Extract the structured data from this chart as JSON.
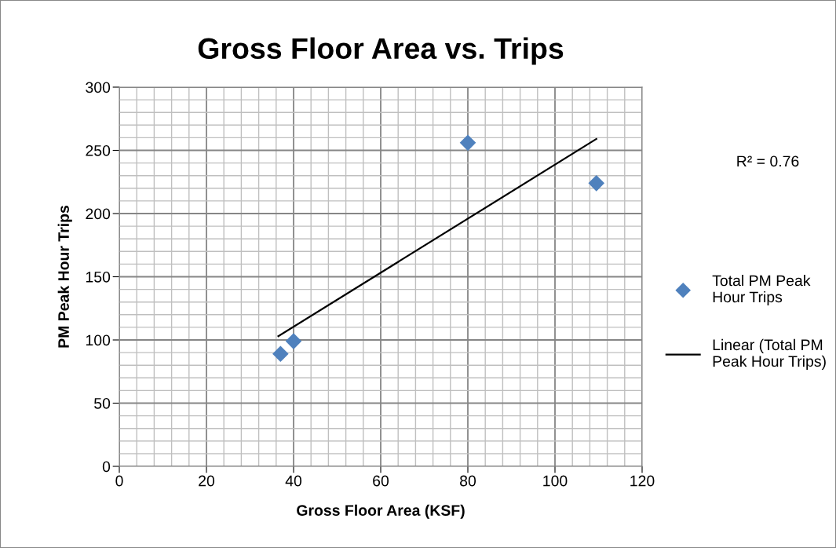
{
  "chart_data": {
    "type": "scatter",
    "title": "Gross Floor Area vs. Trips",
    "xlabel": "Gross Floor Area (KSF)",
    "ylabel": "PM Peak Hour Trips",
    "series": [
      {
        "name": "Total PM Peak Hour Trips",
        "color": "#4f81bd",
        "marker": "diamond",
        "x": [
          37,
          40,
          80,
          109.5
        ],
        "values": [
          89,
          99,
          256,
          224
        ]
      },
      {
        "name": "Linear (Total PM Peak Hour Trips)",
        "type": "line",
        "color": "#000000",
        "marker": "none",
        "line_style": "solid",
        "x": [
          36.5,
          109.5
        ],
        "values": [
          103,
          259
        ]
      }
    ],
    "annotations": [
      "R² = 0.76"
    ],
    "xlim": [
      0,
      120
    ],
    "ylim": [
      0,
      300
    ],
    "xticks": [
      0,
      {
        "value": 4,
        "label": null
      },
      {
        "value": 8,
        "label": null
      },
      {
        "value": 12,
        "label": null
      },
      {
        "value": 16,
        "label": null
      },
      20,
      {
        "value": 24,
        "label": null
      },
      {
        "value": 28,
        "label": null
      },
      {
        "value": 32,
        "label": null
      },
      {
        "value": 36,
        "label": null
      },
      40,
      {
        "value": 44,
        "label": null
      },
      {
        "value": 48,
        "label": null
      },
      {
        "value": 52,
        "label": null
      },
      {
        "value": 56,
        "label": null
      },
      60,
      {
        "value": 64,
        "label": null
      },
      {
        "value": 68,
        "label": null
      },
      {
        "value": 72,
        "label": null
      },
      {
        "value": 76,
        "label": null
      },
      80,
      {
        "value": 84,
        "label": null
      },
      {
        "value": 88,
        "label": null
      },
      {
        "value": 92,
        "label": null
      },
      {
        "value": 96,
        "label": null
      },
      100,
      {
        "value": 104,
        "label": null
      },
      {
        "value": 108,
        "label": null
      },
      {
        "value": 112,
        "label": null
      },
      {
        "value": 116,
        "label": null
      },
      120
    ],
    "yticks": [
      0,
      {
        "value": 10,
        "label": null
      },
      {
        "value": 20,
        "label": null
      },
      {
        "value": 30,
        "label": null
      },
      {
        "value": 40,
        "label": null
      },
      50,
      {
        "value": 60,
        "label": null
      },
      {
        "value": 70,
        "label": null
      },
      {
        "value": 80,
        "label": null
      },
      {
        "value": 90,
        "label": null
      },
      100,
      {
        "value": 110,
        "label": null
      },
      {
        "value": 120,
        "label": null
      },
      {
        "value": 130,
        "label": null
      },
      {
        "value": 140,
        "label": null
      },
      150,
      {
        "value": 160,
        "label": null
      },
      {
        "value": 170,
        "label": null
      },
      {
        "value": 180,
        "label": null
      },
      {
        "value": 190,
        "label": null
      },
      200,
      {
        "value": 210,
        "label": null
      },
      {
        "value": 220,
        "label": null
      },
      {
        "value": 230,
        "label": null
      },
      {
        "value": 240,
        "label": null
      },
      250,
      {
        "value": 260,
        "label": null
      },
      {
        "value": 270,
        "label": null
      },
      {
        "value": 280,
        "label": null
      },
      {
        "value": 290,
        "label": null
      },
      300
    ],
    "grid": true,
    "legend": "right"
  }
}
